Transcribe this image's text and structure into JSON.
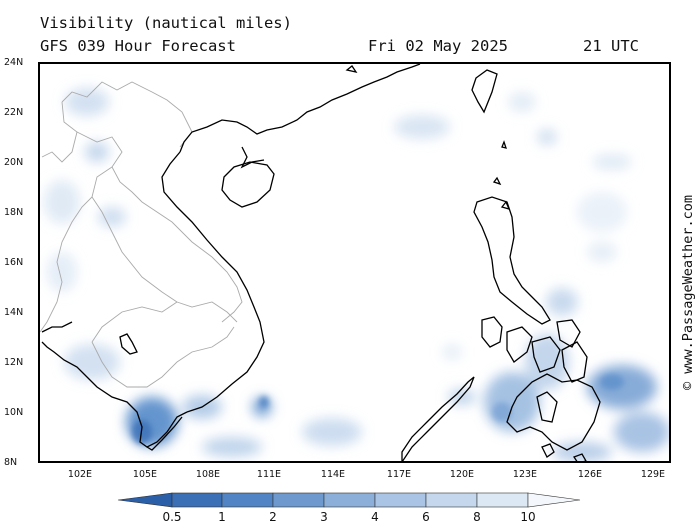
{
  "header": {
    "title": "Visibility (nautical miles)",
    "subtitle": "GFS 039 Hour Forecast",
    "date": "Fri 02 May 2025",
    "time": "21 UTC"
  },
  "credit": "© www.PassageWeather.com",
  "axes": {
    "lat_labels": [
      "24N",
      "22N",
      "20N",
      "18N",
      "16N",
      "14N",
      "12N",
      "10N",
      "8N"
    ],
    "lon_labels": [
      "102E",
      "105E",
      "108E",
      "111E",
      "114E",
      "117E",
      "120E",
      "123E",
      "126E",
      "129E"
    ]
  },
  "legend": {
    "labels": [
      "0.5",
      "1",
      "2",
      "3",
      "4",
      "6",
      "8",
      "10"
    ],
    "colors": [
      "#3b6fb6",
      "#5184c4",
      "#6d99cf",
      "#8cafda",
      "#a9c4e4",
      "#c4d7ed",
      "#dde8f5",
      "#f4f8fc"
    ]
  },
  "colors": {
    "coast": "#000000",
    "borders": "#aaaaaa",
    "haze": "#8fb3dd"
  }
}
